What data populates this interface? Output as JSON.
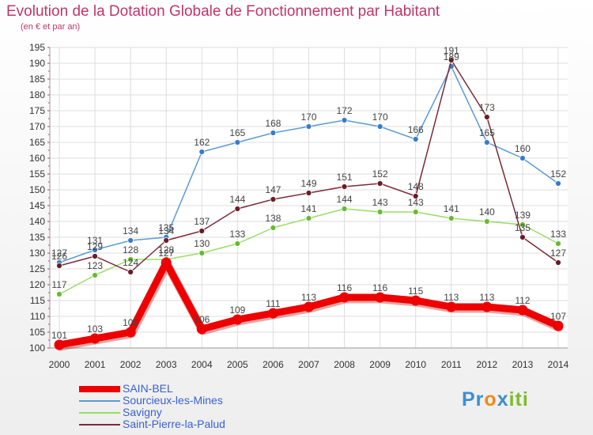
{
  "title": "Evolution de la Dotation Globale de Fonctionnement par Habitant",
  "subtitle": "(en € et par an)",
  "logo": {
    "text": "Proxiti",
    "parts": [
      "Pr",
      "o",
      "x",
      "iti"
    ]
  },
  "colors": {
    "title": "#c0356a",
    "grid": "#dddddd",
    "axis": "#999999",
    "tick_mark": "#c0356a"
  },
  "chart_data": {
    "type": "line",
    "title": "Evolution de la Dotation Globale de Fonctionnement par Habitant",
    "subtitle": "(en € et par an)",
    "xlabel": "",
    "ylabel": "",
    "x": [
      "2000",
      "2001",
      "2002",
      "2003",
      "2004",
      "2005",
      "2006",
      "2007",
      "2008",
      "2009",
      "2010",
      "2011",
      "2012",
      "2013",
      "2014"
    ],
    "ylim": [
      100,
      195
    ],
    "ytick_step": 5,
    "yticks": [
      "100",
      "105",
      "110",
      "115",
      "120",
      "125",
      "130",
      "135",
      "140",
      "145",
      "150",
      "155",
      "160",
      "165",
      "170",
      "175",
      "180",
      "185",
      "190",
      "195"
    ],
    "grid": true,
    "legend_position": "bottom-left",
    "series": [
      {
        "name": "Sourcieux-les-Mines",
        "color": "#5b9bd5",
        "marker": "#3a7bc8",
        "emphasis": false,
        "values": [
          127,
          131,
          134,
          135,
          162,
          165,
          168,
          170,
          172,
          170,
          166,
          189,
          165,
          160,
          152
        ],
        "labels": [
          "127",
          "131",
          "134",
          "135",
          "162",
          "165",
          "168",
          "170",
          "172",
          "170",
          "166",
          "189",
          "165",
          "160",
          "152"
        ]
      },
      {
        "name": "Savigny",
        "color": "#99dd66",
        "marker": "#66bb33",
        "emphasis": false,
        "values": [
          117,
          123,
          128,
          128,
          130,
          133,
          138,
          141,
          144,
          143,
          143,
          141,
          140,
          139,
          133
        ],
        "labels": [
          "117",
          "123",
          "128",
          "128",
          "130",
          "133",
          "138",
          "141",
          "144",
          "143",
          "143",
          "141",
          "140",
          "139",
          "133"
        ]
      },
      {
        "name": "Saint-Pierre-la-Palud",
        "color": "#7a2c36",
        "marker": "#6a1c24",
        "emphasis": false,
        "values": [
          126,
          129,
          124,
          134,
          137,
          144,
          147,
          149,
          151,
          152,
          148,
          191,
          173,
          135,
          127
        ],
        "labels": [
          "126",
          "129",
          "124",
          "134",
          "137",
          "144",
          "147",
          "149",
          "151",
          "152",
          "148",
          "191",
          "173",
          "135",
          "127"
        ]
      },
      {
        "name": "SAIN-BEL",
        "color": "#ee0000",
        "marker": "#ee0000",
        "emphasis": true,
        "values": [
          101,
          103,
          105,
          127,
          106,
          109,
          111,
          113,
          116,
          116,
          115,
          113,
          113,
          112,
          107
        ],
        "labels": [
          "101",
          "103",
          "105",
          "127",
          "106",
          "109",
          "111",
          "113",
          "116",
          "116",
          "115",
          "113",
          "113",
          "112",
          "107"
        ]
      }
    ],
    "legend": [
      {
        "name": "SAIN-BEL",
        "color": "#ee0000",
        "label_color": "#3a5fd0",
        "thick": true
      },
      {
        "name": "Sourcieux-les-Mines",
        "color": "#5b9bd5",
        "label_color": "#3a5fd0",
        "thick": false
      },
      {
        "name": "Savigny",
        "color": "#99dd66",
        "label_color": "#3a5fd0",
        "thick": false
      },
      {
        "name": "Saint-Pierre-la-Palud",
        "color": "#7a2c36",
        "label_color": "#3a5fd0",
        "thick": false
      }
    ]
  }
}
